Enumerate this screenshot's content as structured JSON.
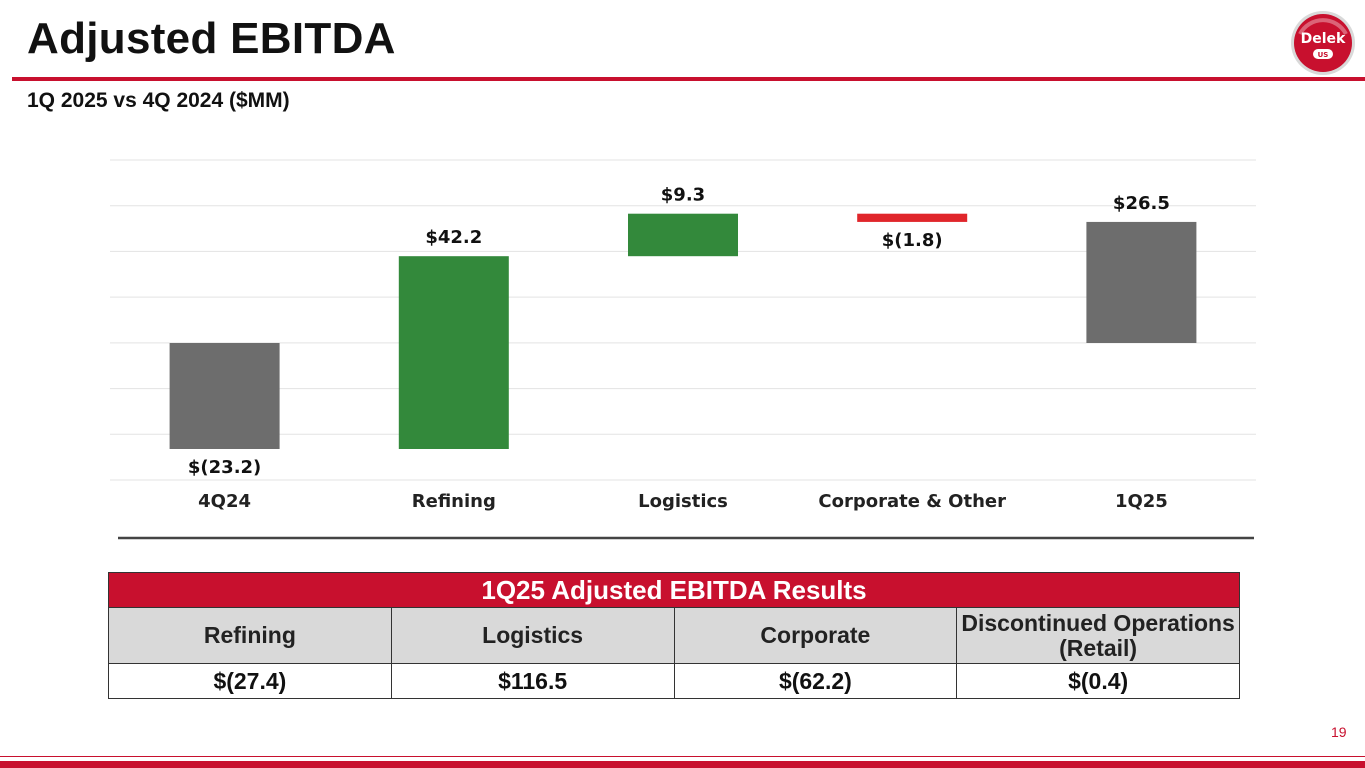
{
  "slide": {
    "title": "Adjusted EBITDA",
    "subtitle": "1Q 2025 vs 4Q 2024 ($MM)",
    "page_number": "19",
    "logo_text": "Delek",
    "logo_subtext": "US"
  },
  "colors": {
    "accent": "#c8102e",
    "total": "#6d6d6d",
    "increase": "#33893b",
    "decrease": "#e0262b",
    "grid": "#e3e3e3"
  },
  "chart_data": {
    "type": "waterfall",
    "title": "",
    "xlabel": "",
    "ylabel": "",
    "grid": true,
    "ylim": [
      -30,
      40
    ],
    "categories": [
      "4Q24",
      "Refining",
      "Logistics",
      "Corporate & Other",
      "1Q25"
    ],
    "values": [
      -23.2,
      42.2,
      9.3,
      -1.8,
      26.5
    ],
    "value_labels": [
      "$(23.2)",
      "$42.2",
      "$9.3",
      "$(1.8)",
      "$26.5"
    ],
    "kinds": [
      "total",
      "increase",
      "increase",
      "decrease",
      "total"
    ]
  },
  "results_table": {
    "title": "1Q25 Adjusted EBITDA Results",
    "headers": [
      "Refining",
      "Logistics",
      "Corporate",
      "Discontinued Operations (Retail)"
    ],
    "values": [
      "$(27.4)",
      "$116.5",
      "$(62.2)",
      "$(0.4)"
    ]
  }
}
